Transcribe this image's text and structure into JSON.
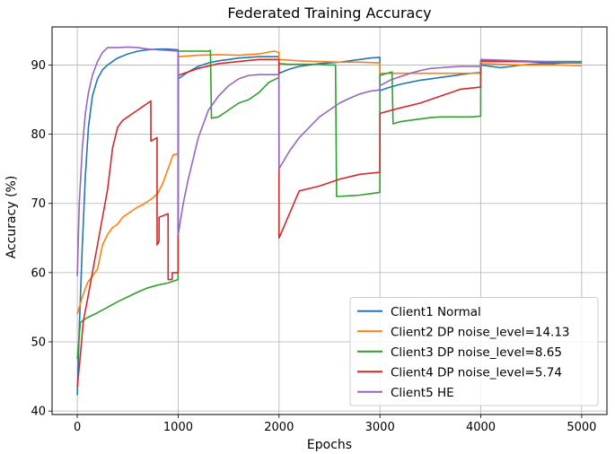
{
  "chart_data": {
    "type": "line",
    "title": "Federated Training Accuracy",
    "xlabel": "Epochs",
    "ylabel": "Accuracy (%)",
    "xlim": [
      -250,
      5250
    ],
    "ylim": [
      39.5,
      95.5
    ],
    "xticks": [
      0,
      1000,
      2000,
      3000,
      4000,
      5000
    ],
    "yticks": [
      40,
      50,
      60,
      70,
      80,
      90
    ],
    "grid": true,
    "legend_position": "lower-right",
    "series": [
      {
        "name": "Client1 Normal",
        "color": "#1f77b4",
        "x": [
          0,
          20,
          50,
          80,
          110,
          150,
          200,
          250,
          300,
          400,
          500,
          600,
          700,
          800,
          900,
          999,
          1000,
          1100,
          1200,
          1300,
          1400,
          1500,
          1600,
          1700,
          1800,
          1900,
          1999,
          2000,
          2100,
          2200,
          2300,
          2400,
          2500,
          2600,
          2700,
          2800,
          2900,
          2999,
          3000,
          3100,
          3200,
          3300,
          3400,
          3500,
          3600,
          3700,
          3800,
          3900,
          3999,
          4000,
          4100,
          4200,
          4300,
          4400,
          4500,
          4600,
          4700,
          4800,
          4900,
          5000
        ],
        "y": [
          42.3,
          52.0,
          64.0,
          74.0,
          81.0,
          85.5,
          88.0,
          89.3,
          90.0,
          91.0,
          91.6,
          92.0,
          92.2,
          92.3,
          92.3,
          92.2,
          88.0,
          89.0,
          89.8,
          90.3,
          90.6,
          90.8,
          91.0,
          91.1,
          91.2,
          91.2,
          91.2,
          88.8,
          89.4,
          89.8,
          90.0,
          90.2,
          90.3,
          90.4,
          90.6,
          90.8,
          91.0,
          91.1,
          86.3,
          86.8,
          87.2,
          87.5,
          87.8,
          88.0,
          88.2,
          88.4,
          88.6,
          88.8,
          88.9,
          90.0,
          89.8,
          89.6,
          89.8,
          90.0,
          90.1,
          90.2,
          90.2,
          90.3,
          90.3,
          90.3
        ]
      },
      {
        "name": "Client2 DP noise_level=14.13",
        "color": "#ff7f0e",
        "x": [
          0,
          50,
          100,
          150,
          200,
          250,
          300,
          350,
          400,
          450,
          500,
          550,
          600,
          650,
          700,
          750,
          800,
          850,
          900,
          950,
          999,
          1000,
          1200,
          1400,
          1600,
          1800,
          1950,
          1999,
          2000,
          2200,
          2400,
          2600,
          2800,
          2999,
          3000,
          3200,
          3400,
          3600,
          3800,
          3999,
          4000,
          4200,
          4400,
          4600,
          4800,
          5000
        ],
        "y": [
          54.0,
          56.5,
          58.5,
          59.5,
          60.5,
          64.0,
          65.5,
          66.5,
          67.0,
          68.0,
          68.5,
          69.0,
          69.5,
          69.8,
          70.3,
          70.8,
          71.5,
          73.0,
          75.0,
          77.0,
          77.2,
          91.2,
          91.4,
          91.5,
          91.4,
          91.6,
          92.0,
          91.8,
          90.8,
          90.6,
          90.5,
          90.4,
          90.4,
          90.3,
          88.8,
          88.8,
          88.8,
          88.8,
          88.8,
          88.8,
          90.2,
          90.1,
          90.0,
          90.0,
          90.0,
          89.9
        ]
      },
      {
        "name": "Client3 DP noise_level=8.65",
        "color": "#2ca02c",
        "x": [
          0,
          30,
          100,
          200,
          300,
          400,
          500,
          600,
          700,
          800,
          900,
          999,
          1000,
          1100,
          1200,
          1300,
          1320,
          1330,
          1400,
          1500,
          1600,
          1700,
          1800,
          1900,
          1999,
          2000,
          2100,
          2200,
          2300,
          2400,
          2500,
          2560,
          2570,
          2700,
          2800,
          2900,
          2999,
          3000,
          3100,
          3120,
          3130,
          3200,
          3300,
          3400,
          3500,
          3600,
          3700,
          3800,
          3900,
          3999,
          4000,
          4200,
          4400,
          4600,
          4800,
          5000
        ],
        "y": [
          47.5,
          52.8,
          53.5,
          54.2,
          55.0,
          55.8,
          56.5,
          57.2,
          57.8,
          58.2,
          58.5,
          59.0,
          92.0,
          92.0,
          92.0,
          92.0,
          92.1,
          82.3,
          82.5,
          83.5,
          84.5,
          85.0,
          86.0,
          87.5,
          88.2,
          90.2,
          90.1,
          90.1,
          90.1,
          90.1,
          90.0,
          90.0,
          71.0,
          71.1,
          71.2,
          71.4,
          71.6,
          88.5,
          88.9,
          89.0,
          81.5,
          81.8,
          82.0,
          82.2,
          82.4,
          82.5,
          82.5,
          82.5,
          82.5,
          82.6,
          90.5,
          90.5,
          90.5,
          90.5,
          90.5,
          90.5
        ]
      },
      {
        "name": "Client4 DP noise_level=5.74",
        "color": "#d62728",
        "x": [
          0,
          30,
          60,
          100,
          150,
          200,
          250,
          300,
          350,
          400,
          450,
          500,
          550,
          600,
          650,
          700,
          729,
          730,
          790,
          791,
          810,
          811,
          900,
          901,
          940,
          941,
          999,
          1000,
          1200,
          1400,
          1600,
          1800,
          1999,
          2000,
          2200,
          2400,
          2600,
          2800,
          2999,
          3000,
          3200,
          3400,
          3600,
          3800,
          3999,
          4000,
          4200,
          4400,
          4600,
          4800,
          5000
        ],
        "y": [
          43.5,
          48.0,
          53.0,
          56.0,
          60.0,
          64.0,
          68.0,
          72.0,
          78.0,
          81.0,
          82.0,
          82.5,
          83.0,
          83.5,
          84.0,
          84.5,
          84.8,
          79.0,
          79.5,
          64.0,
          64.5,
          68.0,
          68.5,
          59.0,
          59.0,
          60.0,
          60.0,
          88.5,
          89.5,
          90.2,
          90.5,
          90.8,
          90.8,
          65.0,
          71.8,
          72.5,
          73.5,
          74.2,
          74.5,
          83.0,
          83.8,
          84.5,
          85.5,
          86.5,
          86.8,
          90.6,
          90.5,
          90.5,
          90.4,
          90.4,
          90.4
        ]
      },
      {
        "name": "Client5 HE",
        "color": "#9467bd",
        "x": [
          0,
          20,
          50,
          80,
          110,
          150,
          200,
          250,
          300,
          400,
          500,
          600,
          700,
          800,
          900,
          999,
          1000,
          1050,
          1100,
          1150,
          1200,
          1300,
          1400,
          1500,
          1600,
          1700,
          1800,
          1900,
          1999,
          2000,
          2100,
          2200,
          2300,
          2400,
          2500,
          2600,
          2700,
          2800,
          2900,
          2999,
          3000,
          3100,
          3200,
          3300,
          3400,
          3500,
          3600,
          3700,
          3800,
          3900,
          3999,
          4000,
          4200,
          4400,
          4600,
          4800,
          5000
        ],
        "y": [
          59.5,
          70.0,
          78.0,
          83.0,
          86.0,
          88.5,
          90.5,
          91.8,
          92.5,
          92.5,
          92.6,
          92.5,
          92.3,
          92.2,
          92.1,
          92.0,
          65.5,
          70.0,
          73.5,
          76.5,
          79.5,
          83.5,
          85.5,
          87.0,
          88.0,
          88.5,
          88.6,
          88.6,
          88.6,
          75.0,
          77.5,
          79.5,
          81.0,
          82.5,
          83.5,
          84.5,
          85.2,
          85.8,
          86.2,
          86.4,
          87.0,
          87.8,
          88.3,
          88.8,
          89.2,
          89.5,
          89.6,
          89.7,
          89.8,
          89.8,
          89.8,
          90.8,
          90.7,
          90.6,
          90.5,
          90.4,
          90.4
        ]
      }
    ]
  }
}
